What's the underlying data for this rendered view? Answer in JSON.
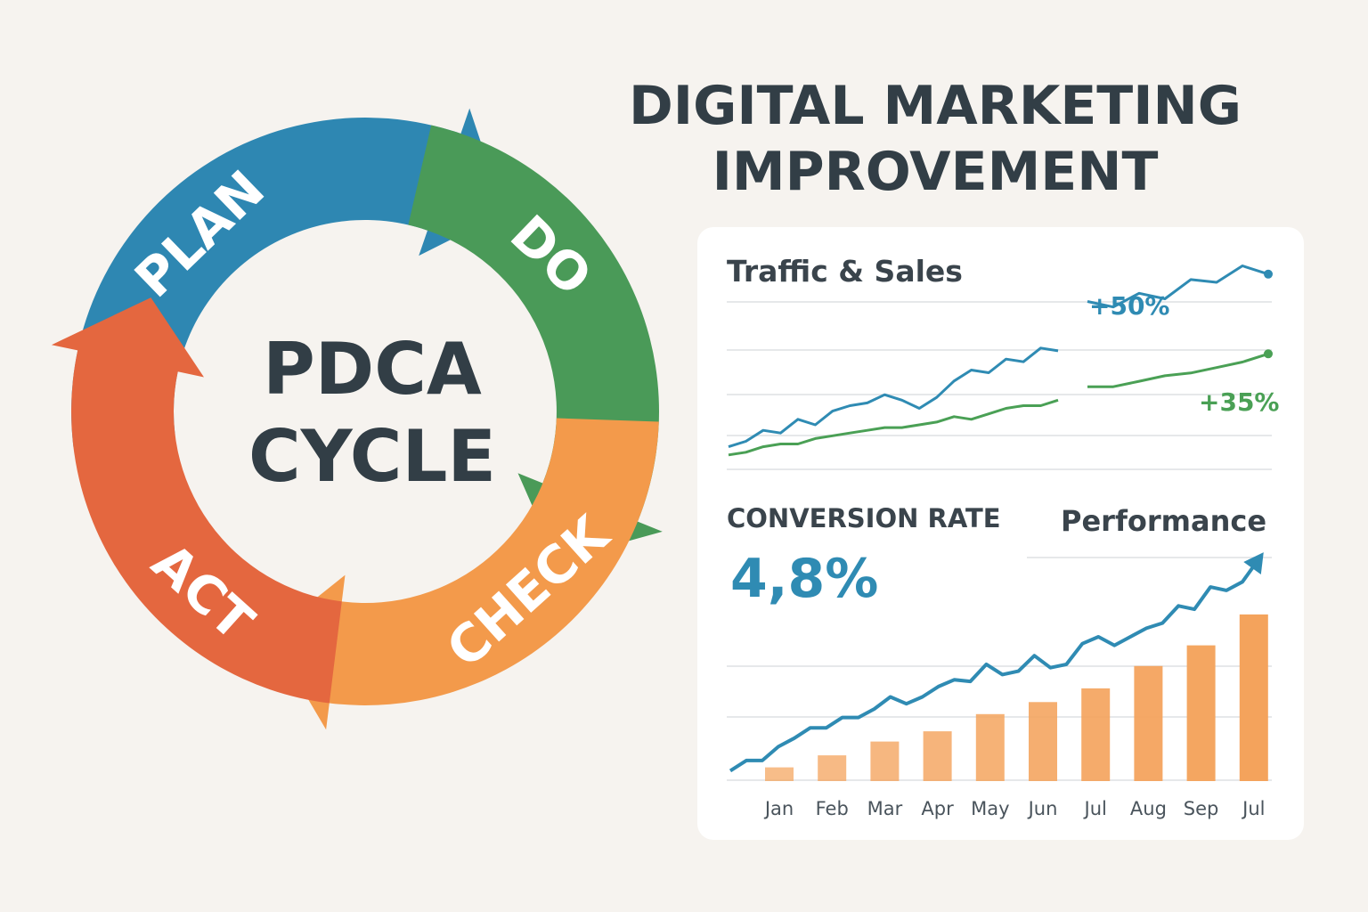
{
  "title": {
    "line1": "DIGITAL MARKETING",
    "line2": "IMPROVEMENT"
  },
  "cycle": {
    "center_line1": "PDCA",
    "center_line2": "CYCLE",
    "stages": [
      {
        "label": "PLAN",
        "color": "#2e87b2"
      },
      {
        "label": "DO",
        "color": "#4a9a58"
      },
      {
        "label": "CHECK",
        "color": "#f39a4b"
      },
      {
        "label": "ACT",
        "color": "#e4673f"
      }
    ]
  },
  "dashboard": {
    "traffic_title": "Traffic & Sales",
    "traffic_change": "+50%",
    "sales_change": "+35%",
    "conversion_label": "CONVERSION RATE",
    "conversion_value": "4,8%",
    "performance_title": "Performance"
  },
  "chart_data": [
    {
      "type": "line",
      "title": "Traffic & Sales",
      "x": [
        1,
        2,
        3,
        4,
        5,
        6,
        7,
        8,
        9,
        10,
        11,
        12,
        13,
        14,
        15,
        16,
        17,
        18,
        19,
        20,
        21,
        22,
        23,
        24,
        25,
        26,
        27,
        28
      ],
      "series": [
        {
          "name": "",
          "color": "#2f8bb3",
          "values": [
            10,
            14,
            22,
            20,
            30,
            26,
            36,
            40,
            42,
            48,
            44,
            38,
            46,
            58,
            66,
            64,
            74,
            72,
            82,
            80,
            90,
            86,
            96,
            92,
            106,
            104,
            116,
            110
          ]
        },
        {
          "name": "",
          "color": "#4aa055",
          "values": [
            4,
            6,
            10,
            12,
            12,
            16,
            18,
            20,
            22,
            24,
            24,
            26,
            28,
            32,
            30,
            34,
            38,
            40,
            40,
            44,
            46,
            46,
            50,
            54,
            56,
            60,
            64,
            70
          ]
        }
      ],
      "annotations": [
        "+50%",
        "+35%"
      ],
      "ylim": [
        0,
        130
      ]
    },
    {
      "type": "bar",
      "title": "Performance",
      "categories": [
        "Jan",
        "Feb",
        "Mar",
        "Apr",
        "May",
        "Jun",
        "Jul",
        "Aug",
        "Sep",
        "Jul"
      ],
      "values": [
        8,
        15,
        23,
        29,
        39,
        46,
        54,
        67,
        79,
        97
      ],
      "line_values": [
        6,
        12,
        12,
        20,
        25,
        31,
        31,
        37,
        37,
        42,
        49,
        45,
        49,
        55,
        59,
        58,
        68,
        62,
        64,
        73,
        66,
        68,
        80,
        84,
        79,
        84,
        89,
        92,
        102,
        100,
        113,
        111,
        116,
        129
      ],
      "ylim": [
        0,
        140
      ],
      "bar_color": "#f4a35c",
      "line_color": "#2f8bb3"
    }
  ]
}
